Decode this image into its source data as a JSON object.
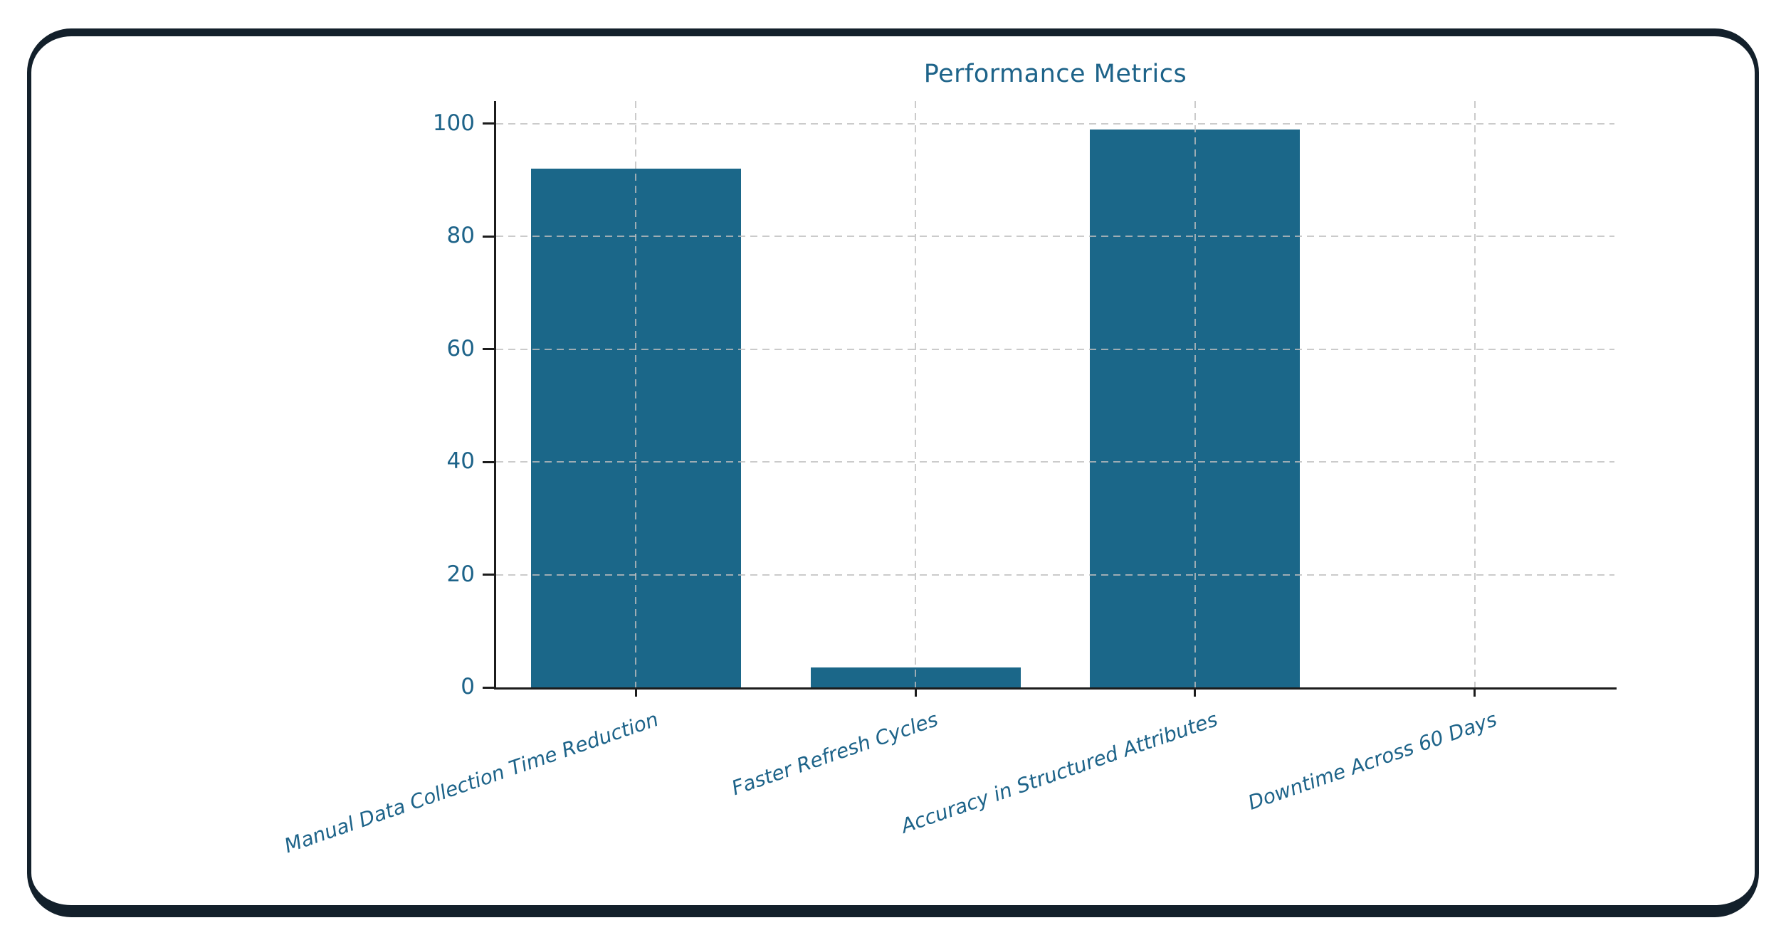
{
  "window": {
    "background_color": "#ffffff",
    "frame_border_color": "#13202b"
  },
  "chart_data": {
    "type": "bar",
    "title": "Performance Metrics",
    "categories": [
      "Manual Data Collection Time Reduction",
      "Faster Refresh Cycles",
      "Accuracy in Structured Attributes",
      "Downtime Across 60 Days"
    ],
    "values": [
      92,
      3.5,
      99,
      0
    ],
    "xlabel": "",
    "ylabel": "",
    "y_ticks": [
      0,
      20,
      40,
      60,
      80,
      100
    ],
    "ylim": [
      0,
      104
    ],
    "grid": "dashed, horizontal and vertical, drawn over bars",
    "legend": "none",
    "bar_color": "#1b6789",
    "text_color": "#1d6389",
    "axis_color": "#1c1c1c",
    "grid_color": "#bebebe",
    "x_label_style": "italic, rotated ~19deg, right-anchored"
  }
}
